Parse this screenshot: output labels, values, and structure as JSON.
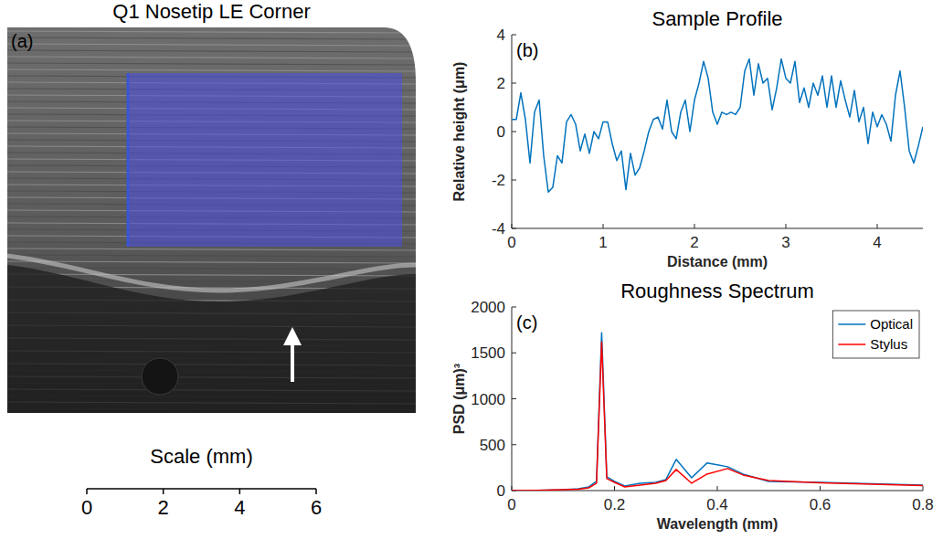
{
  "chart_data": [
    {
      "type": "image",
      "title": "Q1 Nosetip LE Corner",
      "panel_label": "(a)",
      "xlabel": "Scale (mm)",
      "xlim": [
        0,
        6
      ],
      "xticks": [
        0,
        2,
        4,
        6
      ]
    },
    {
      "type": "line",
      "title": "Sample Profile",
      "panel_label": "(b)",
      "xlabel": "Distance (mm)",
      "ylabel": "Relative height (μm)",
      "xlim": [
        0,
        4.5
      ],
      "xticks": [
        0,
        1,
        2,
        3,
        4
      ],
      "ylim": [
        -4,
        4
      ],
      "yticks": [
        -4,
        -2,
        0,
        2,
        4
      ],
      "grid": false,
      "x": [
        0,
        0.05,
        0.1,
        0.15,
        0.2,
        0.25,
        0.3,
        0.35,
        0.4,
        0.45,
        0.5,
        0.55,
        0.6,
        0.65,
        0.7,
        0.75,
        0.8,
        0.85,
        0.9,
        0.95,
        1,
        1.05,
        1.1,
        1.15,
        1.2,
        1.25,
        1.3,
        1.35,
        1.4,
        1.45,
        1.5,
        1.55,
        1.6,
        1.65,
        1.7,
        1.75,
        1.8,
        1.85,
        1.9,
        1.95,
        2,
        2.05,
        2.1,
        2.15,
        2.2,
        2.25,
        2.3,
        2.35,
        2.4,
        2.45,
        2.5,
        2.55,
        2.6,
        2.65,
        2.7,
        2.75,
        2.8,
        2.85,
        2.9,
        2.95,
        3,
        3.05,
        3.1,
        3.15,
        3.2,
        3.25,
        3.3,
        3.35,
        3.4,
        3.45,
        3.5,
        3.55,
        3.6,
        3.65,
        3.7,
        3.75,
        3.8,
        3.85,
        3.9,
        3.95,
        4,
        4.05,
        4.1,
        4.15,
        4.2,
        4.25,
        4.3,
        4.35,
        4.4,
        4.45,
        4.5
      ],
      "series": [
        {
          "name": "Profile",
          "color": "#0072bd",
          "values": [
            0.5,
            0.5,
            1.6,
            0.5,
            -1.3,
            0.8,
            1.3,
            -1.0,
            -2.5,
            -2.3,
            -1.0,
            -1.3,
            0.4,
            0.7,
            0.3,
            -0.8,
            -0.1,
            -0.9,
            0.0,
            -0.3,
            0.4,
            0.4,
            -0.5,
            -1.2,
            -0.8,
            -2.4,
            -0.9,
            -1.8,
            -1.5,
            -0.8,
            0.0,
            0.5,
            0.6,
            0.1,
            1.3,
            0.0,
            -0.3,
            0.8,
            1.3,
            0.0,
            1.3,
            2.0,
            2.9,
            2.2,
            0.8,
            0.3,
            0.8,
            0.7,
            0.8,
            0.7,
            1.0,
            2.5,
            3.0,
            1.5,
            2.8,
            2.0,
            2.2,
            0.9,
            1.8,
            3.0,
            2.2,
            2.0,
            2.9,
            1.2,
            1.8,
            1.0,
            2.0,
            1.5,
            2.3,
            1.0,
            2.3,
            1.0,
            2.1,
            1.3,
            0.6,
            1.7,
            0.4,
            1.0,
            -0.5,
            0.8,
            0.2,
            0.7,
            0.3,
            -0.4,
            1.5,
            2.5,
            1.0,
            -0.8,
            -1.3,
            -0.6,
            0.2
          ]
        }
      ]
    },
    {
      "type": "line",
      "title": "Roughness Spectrum",
      "panel_label": "(c)",
      "xlabel": "Wavelength (mm)",
      "ylabel": "PSD (μm)³",
      "xlim": [
        0,
        0.8
      ],
      "xticks": [
        0,
        0.2,
        0.4,
        0.6,
        0.8
      ],
      "ylim": [
        0,
        2000
      ],
      "yticks": [
        0,
        500,
        1000,
        1500,
        2000
      ],
      "grid": false,
      "legend": "upper right",
      "x": [
        0,
        0.05,
        0.1,
        0.13,
        0.15,
        0.165,
        0.175,
        0.185,
        0.2,
        0.22,
        0.25,
        0.28,
        0.3,
        0.32,
        0.35,
        0.38,
        0.42,
        0.45,
        0.5,
        0.6,
        0.7,
        0.8
      ],
      "series": [
        {
          "name": "Optical",
          "color": "#0072bd",
          "values": [
            0,
            2,
            10,
            20,
            40,
            100,
            1720,
            150,
            100,
            50,
            80,
            90,
            120,
            340,
            140,
            300,
            260,
            180,
            100,
            90,
            75,
            60
          ]
        },
        {
          "name": "Stylus",
          "color": "#ff0000",
          "values": [
            0,
            2,
            10,
            15,
            30,
            80,
            1620,
            130,
            90,
            40,
            60,
            80,
            110,
            230,
            80,
            180,
            240,
            170,
            110,
            85,
            70,
            55
          ]
        }
      ]
    }
  ]
}
